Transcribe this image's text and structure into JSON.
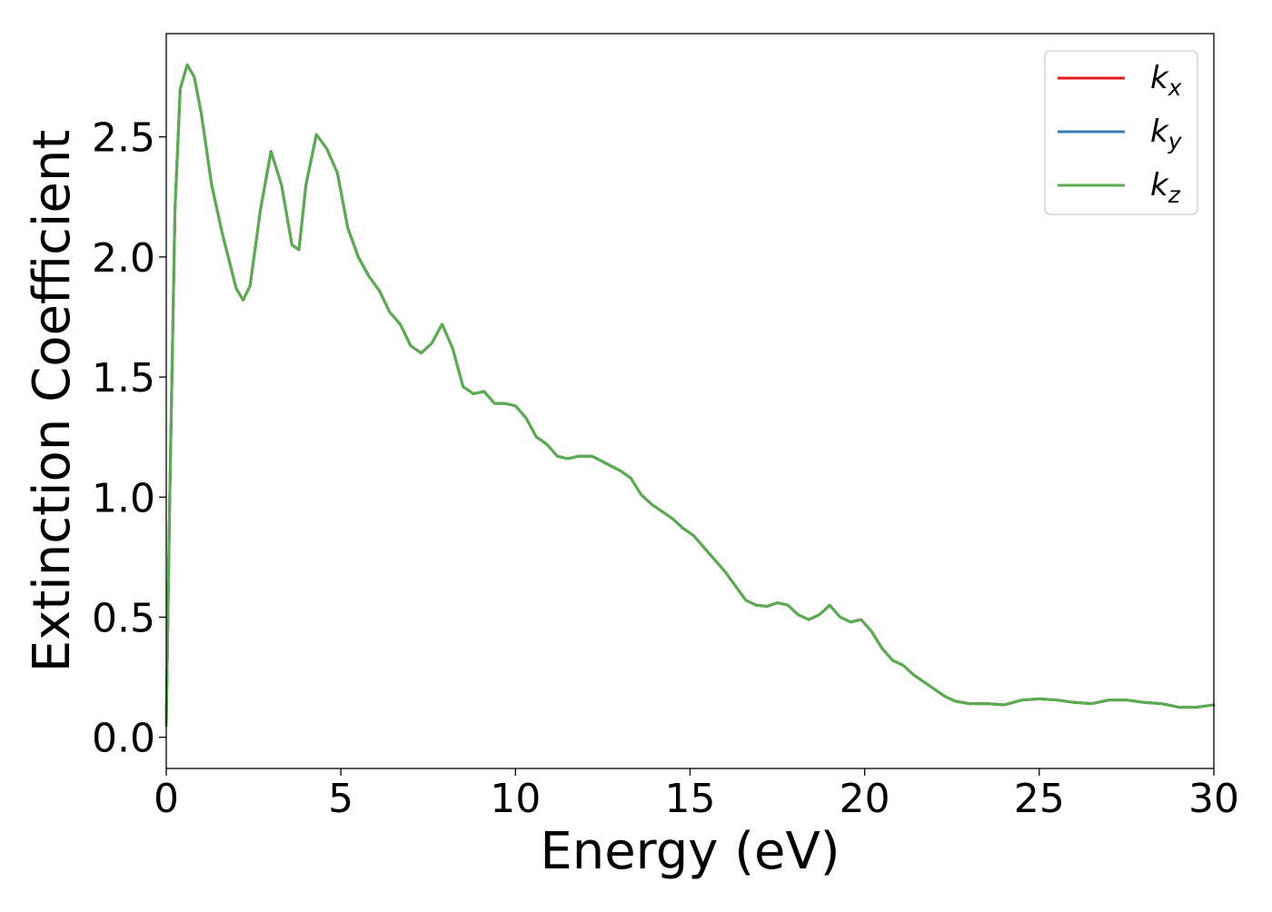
{
  "chart_data": {
    "type": "line",
    "xlabel": "Energy (eV)",
    "ylabel": "Extinction Coefficient",
    "xlim": [
      0,
      30
    ],
    "ylim": [
      -0.13,
      2.93
    ],
    "xticks": [
      0,
      5,
      10,
      15,
      20,
      25,
      30
    ],
    "xtick_labels": [
      "0",
      "5",
      "10",
      "15",
      "20",
      "25",
      "30"
    ],
    "yticks": [
      0.0,
      0.5,
      1.0,
      1.5,
      2.0,
      2.5
    ],
    "ytick_labels": [
      "0.0",
      "0.5",
      "1.0",
      "1.5",
      "2.0",
      "2.5"
    ],
    "grid": false,
    "legend_position": "top-right",
    "series": [
      {
        "name": "k_x",
        "label_base": "k",
        "label_sub": "x",
        "color": "#e41a1c",
        "x": [
          0,
          0.1,
          0.25,
          0.4,
          0.6,
          0.8,
          1.0,
          1.3,
          1.6,
          2.0,
          2.2,
          2.4,
          2.7,
          3.0,
          3.3,
          3.6,
          3.8,
          4.0,
          4.3,
          4.6,
          4.9,
          5.2,
          5.5,
          5.8,
          6.1,
          6.4,
          6.7,
          7.0,
          7.3,
          7.6,
          7.9,
          8.2,
          8.5,
          8.8,
          9.1,
          9.4,
          9.7,
          10.0,
          10.3,
          10.6,
          10.9,
          11.2,
          11.5,
          11.8,
          12.2,
          12.6,
          13.0,
          13.3,
          13.6,
          13.9,
          14.2,
          14.5,
          14.8,
          15.1,
          15.4,
          15.7,
          16.0,
          16.3,
          16.6,
          16.9,
          17.2,
          17.5,
          17.8,
          18.1,
          18.4,
          18.7,
          19.0,
          19.3,
          19.6,
          19.9,
          20.2,
          20.5,
          20.8,
          21.1,
          21.4,
          21.7,
          22.0,
          22.3,
          22.6,
          23.0,
          23.5,
          24.0,
          24.5,
          25.0,
          25.5,
          26.0,
          26.5,
          27.0,
          27.5,
          28.0,
          28.5,
          29.0,
          29.5,
          30.0
        ],
        "values": [
          0.05,
          1.0,
          2.2,
          2.7,
          2.8,
          2.75,
          2.6,
          2.3,
          2.1,
          1.87,
          1.82,
          1.88,
          2.2,
          2.44,
          2.3,
          2.05,
          2.03,
          2.3,
          2.51,
          2.45,
          2.35,
          2.12,
          2.0,
          1.92,
          1.86,
          1.77,
          1.72,
          1.63,
          1.6,
          1.64,
          1.72,
          1.62,
          1.46,
          1.43,
          1.44,
          1.39,
          1.39,
          1.38,
          1.33,
          1.25,
          1.22,
          1.17,
          1.16,
          1.17,
          1.17,
          1.14,
          1.11,
          1.08,
          1.01,
          0.97,
          0.94,
          0.91,
          0.87,
          0.84,
          0.79,
          0.74,
          0.69,
          0.63,
          0.57,
          0.55,
          0.545,
          0.56,
          0.55,
          0.51,
          0.49,
          0.51,
          0.55,
          0.5,
          0.48,
          0.49,
          0.44,
          0.37,
          0.32,
          0.3,
          0.26,
          0.23,
          0.2,
          0.17,
          0.15,
          0.14,
          0.14,
          0.135,
          0.155,
          0.16,
          0.155,
          0.145,
          0.14,
          0.155,
          0.155,
          0.145,
          0.14,
          0.125,
          0.125,
          0.135
        ]
      },
      {
        "name": "k_y",
        "label_base": "k",
        "label_sub": "y",
        "color": "#377eb8",
        "x": [
          0,
          0.1,
          0.25,
          0.4,
          0.6,
          0.8,
          1.0,
          1.3,
          1.6,
          2.0,
          2.2,
          2.4,
          2.7,
          3.0,
          3.3,
          3.6,
          3.8,
          4.0,
          4.3,
          4.6,
          4.9,
          5.2,
          5.5,
          5.8,
          6.1,
          6.4,
          6.7,
          7.0,
          7.3,
          7.6,
          7.9,
          8.2,
          8.5,
          8.8,
          9.1,
          9.4,
          9.7,
          10.0,
          10.3,
          10.6,
          10.9,
          11.2,
          11.5,
          11.8,
          12.2,
          12.6,
          13.0,
          13.3,
          13.6,
          13.9,
          14.2,
          14.5,
          14.8,
          15.1,
          15.4,
          15.7,
          16.0,
          16.3,
          16.6,
          16.9,
          17.2,
          17.5,
          17.8,
          18.1,
          18.4,
          18.7,
          19.0,
          19.3,
          19.6,
          19.9,
          20.2,
          20.5,
          20.8,
          21.1,
          21.4,
          21.7,
          22.0,
          22.3,
          22.6,
          23.0,
          23.5,
          24.0,
          24.5,
          25.0,
          25.5,
          26.0,
          26.5,
          27.0,
          27.5,
          28.0,
          28.5,
          29.0,
          29.5,
          30.0
        ],
        "values": [
          0.05,
          1.0,
          2.2,
          2.7,
          2.8,
          2.75,
          2.6,
          2.3,
          2.1,
          1.87,
          1.82,
          1.88,
          2.2,
          2.44,
          2.3,
          2.05,
          2.03,
          2.3,
          2.51,
          2.45,
          2.35,
          2.12,
          2.0,
          1.92,
          1.86,
          1.77,
          1.72,
          1.63,
          1.6,
          1.64,
          1.72,
          1.62,
          1.46,
          1.43,
          1.44,
          1.39,
          1.39,
          1.38,
          1.33,
          1.25,
          1.22,
          1.17,
          1.16,
          1.17,
          1.17,
          1.14,
          1.11,
          1.08,
          1.01,
          0.97,
          0.94,
          0.91,
          0.87,
          0.84,
          0.79,
          0.74,
          0.69,
          0.63,
          0.57,
          0.55,
          0.545,
          0.56,
          0.55,
          0.51,
          0.49,
          0.51,
          0.55,
          0.5,
          0.48,
          0.49,
          0.44,
          0.37,
          0.32,
          0.3,
          0.26,
          0.23,
          0.2,
          0.17,
          0.15,
          0.14,
          0.14,
          0.135,
          0.155,
          0.16,
          0.155,
          0.145,
          0.14,
          0.155,
          0.155,
          0.145,
          0.14,
          0.125,
          0.125,
          0.135
        ]
      },
      {
        "name": "k_z",
        "label_base": "k",
        "label_sub": "z",
        "color": "#5aad4e",
        "x": [
          0,
          0.1,
          0.25,
          0.4,
          0.6,
          0.8,
          1.0,
          1.3,
          1.6,
          2.0,
          2.2,
          2.4,
          2.7,
          3.0,
          3.3,
          3.6,
          3.8,
          4.0,
          4.3,
          4.6,
          4.9,
          5.2,
          5.5,
          5.8,
          6.1,
          6.4,
          6.7,
          7.0,
          7.3,
          7.6,
          7.9,
          8.2,
          8.5,
          8.8,
          9.1,
          9.4,
          9.7,
          10.0,
          10.3,
          10.6,
          10.9,
          11.2,
          11.5,
          11.8,
          12.2,
          12.6,
          13.0,
          13.3,
          13.6,
          13.9,
          14.2,
          14.5,
          14.8,
          15.1,
          15.4,
          15.7,
          16.0,
          16.3,
          16.6,
          16.9,
          17.2,
          17.5,
          17.8,
          18.1,
          18.4,
          18.7,
          19.0,
          19.3,
          19.6,
          19.9,
          20.2,
          20.5,
          20.8,
          21.1,
          21.4,
          21.7,
          22.0,
          22.3,
          22.6,
          23.0,
          23.5,
          24.0,
          24.5,
          25.0,
          25.5,
          26.0,
          26.5,
          27.0,
          27.5,
          28.0,
          28.5,
          29.0,
          29.5,
          30.0
        ],
        "values": [
          0.05,
          1.0,
          2.2,
          2.7,
          2.8,
          2.75,
          2.6,
          2.3,
          2.1,
          1.87,
          1.82,
          1.88,
          2.2,
          2.44,
          2.3,
          2.05,
          2.03,
          2.3,
          2.51,
          2.45,
          2.35,
          2.12,
          2.0,
          1.92,
          1.86,
          1.77,
          1.72,
          1.63,
          1.6,
          1.64,
          1.72,
          1.62,
          1.46,
          1.43,
          1.44,
          1.39,
          1.39,
          1.38,
          1.33,
          1.25,
          1.22,
          1.17,
          1.16,
          1.17,
          1.17,
          1.14,
          1.11,
          1.08,
          1.01,
          0.97,
          0.94,
          0.91,
          0.87,
          0.84,
          0.79,
          0.74,
          0.69,
          0.63,
          0.57,
          0.55,
          0.545,
          0.56,
          0.55,
          0.51,
          0.49,
          0.51,
          0.55,
          0.5,
          0.48,
          0.49,
          0.44,
          0.37,
          0.32,
          0.3,
          0.26,
          0.23,
          0.2,
          0.17,
          0.15,
          0.14,
          0.14,
          0.135,
          0.155,
          0.16,
          0.155,
          0.145,
          0.14,
          0.155,
          0.155,
          0.145,
          0.14,
          0.125,
          0.125,
          0.135
        ]
      }
    ]
  }
}
